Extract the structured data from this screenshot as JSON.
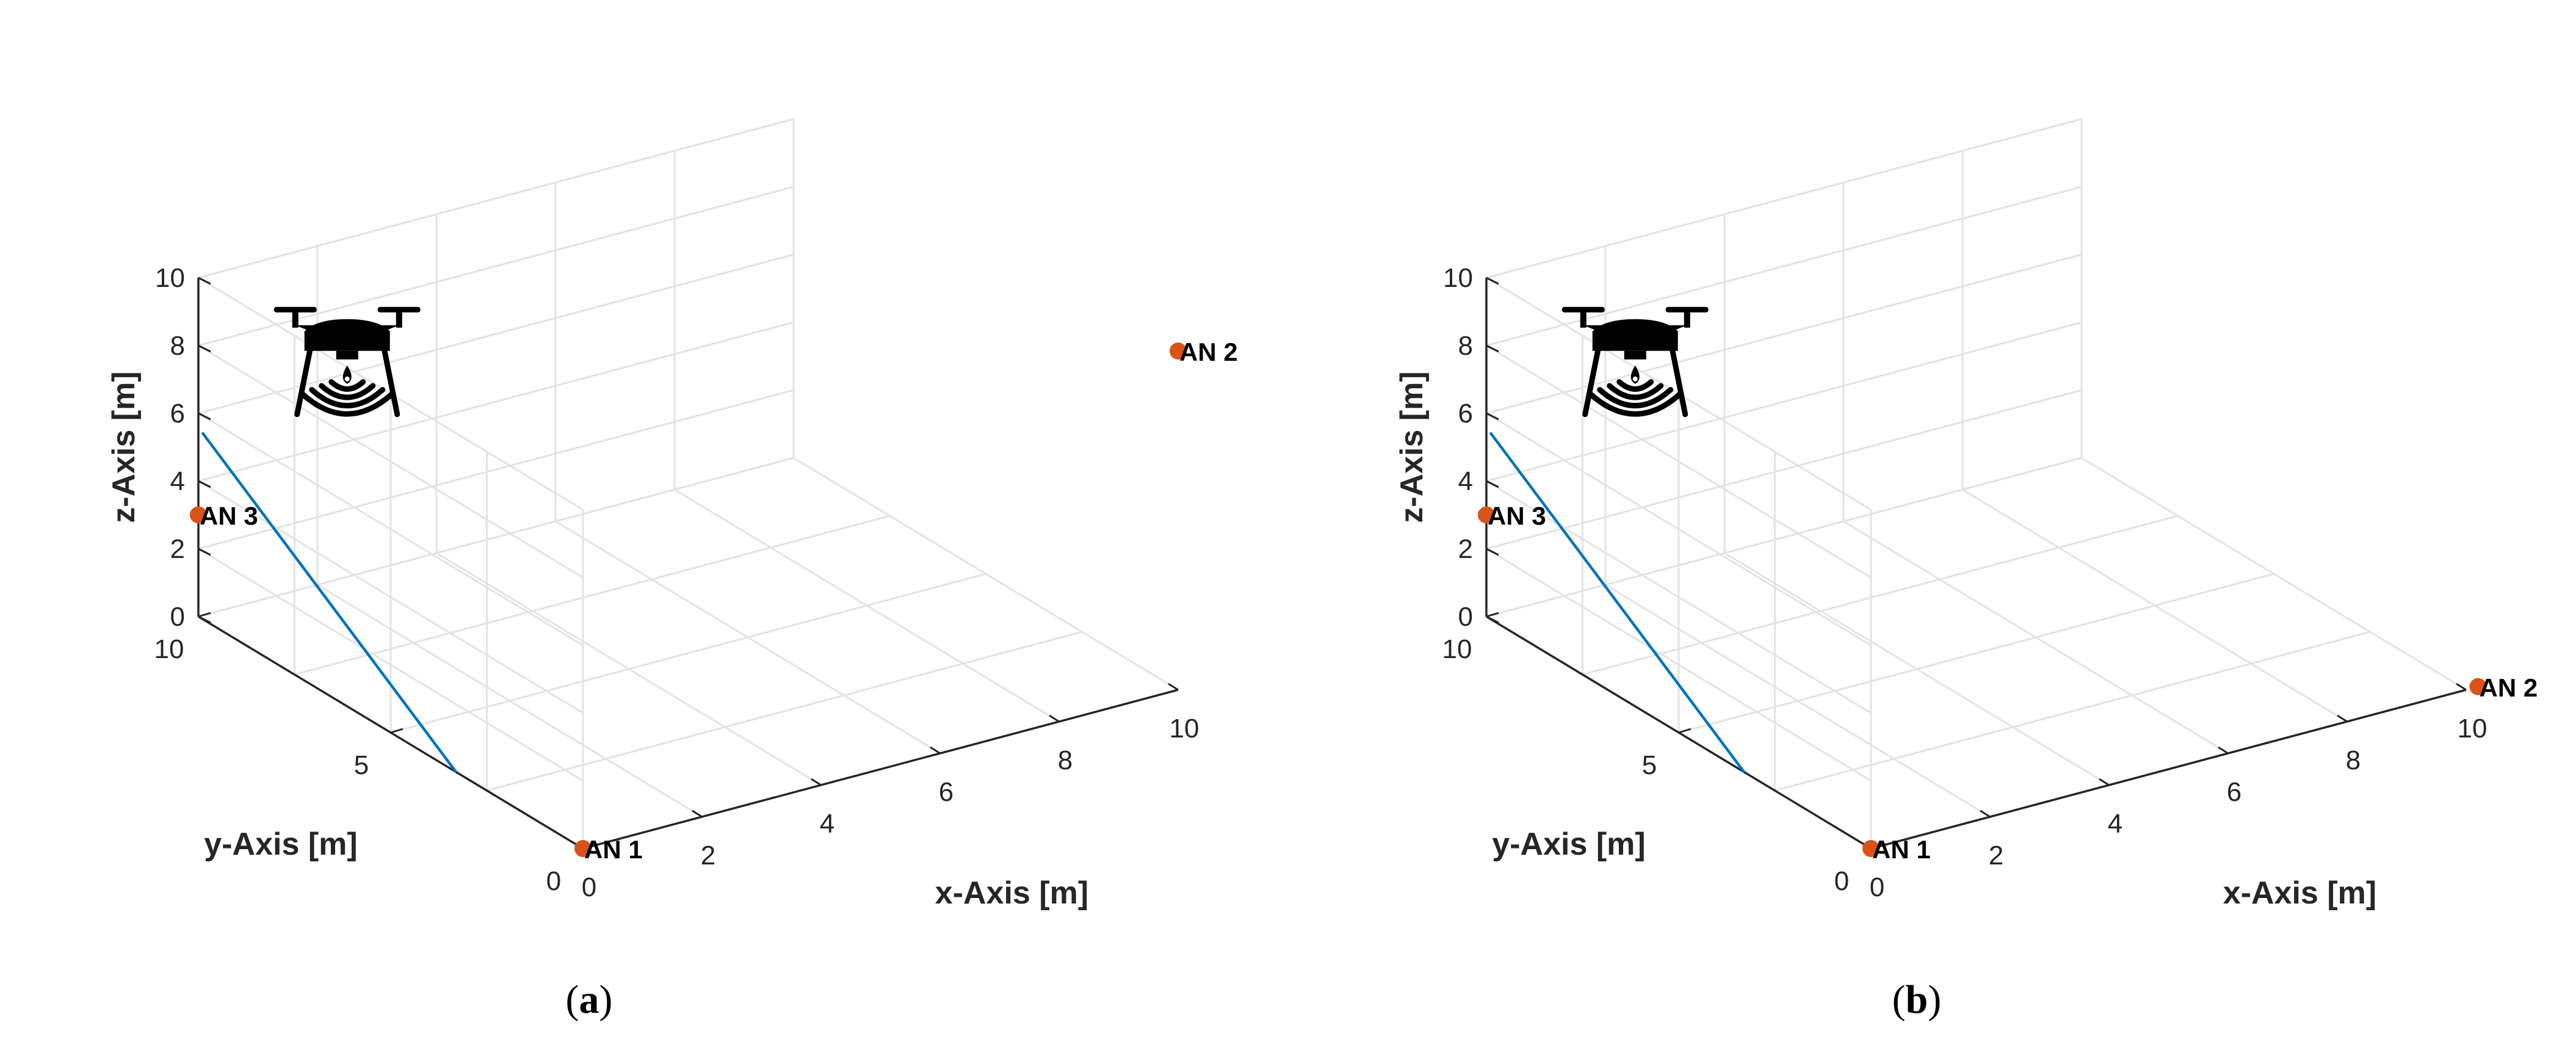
{
  "colors": {
    "grid": "#e3e3e3",
    "axis": "#262626",
    "trajectory": "#0072BD",
    "anchor": "#D95319",
    "drone": "#000000"
  },
  "icons": [
    "drone-icon",
    "wireless-signal-icon"
  ],
  "chart_data": [
    {
      "type": "scatter3d",
      "panel_label": "a",
      "xlabel": "x-Axis [m]",
      "ylabel": "y-Axis [m]",
      "zlabel": "z-Axis [m]",
      "xlim": [
        0,
        10
      ],
      "ylim": [
        0,
        10
      ],
      "zlim": [
        0,
        10
      ],
      "xticks": [
        "0",
        "2",
        "4",
        "6",
        "8",
        "10"
      ],
      "yticks": [
        "0",
        "5",
        "10"
      ],
      "zticks": [
        "0",
        "2",
        "4",
        "6",
        "8",
        "10"
      ],
      "grid": true,
      "anchors": [
        {
          "label": "AN 1",
          "x": 0,
          "y": 0,
          "z": 0
        },
        {
          "label": "AN 2",
          "x": 10,
          "y": 0,
          "z": 10
        },
        {
          "label": "AN 3",
          "x": 0,
          "y": 10,
          "z": 3
        }
      ],
      "trajectory": [
        {
          "x": 0,
          "y": 3.3,
          "z": 0
        },
        {
          "x": 0,
          "y": 9.9,
          "z": 5.5
        }
      ],
      "drone": {
        "x": 2.5,
        "y": 10,
        "z": 7.5
      }
    },
    {
      "type": "scatter3d",
      "panel_label": "b",
      "xlabel": "x-Axis [m]",
      "ylabel": "y-Axis [m]",
      "zlabel": "z-Axis [m]",
      "xlim": [
        0,
        10
      ],
      "ylim": [
        0,
        10
      ],
      "zlim": [
        0,
        10
      ],
      "xticks": [
        "0",
        "2",
        "4",
        "6",
        "8",
        "10"
      ],
      "yticks": [
        "0",
        "5",
        "10"
      ],
      "zticks": [
        "0",
        "2",
        "4",
        "6",
        "8",
        "10"
      ],
      "grid": true,
      "anchors": [
        {
          "label": "AN 1",
          "x": 0,
          "y": 0,
          "z": 0
        },
        {
          "label": "AN 2",
          "x": 10.2,
          "y": 0,
          "z": 0
        },
        {
          "label": "AN 3",
          "x": 0,
          "y": 10,
          "z": 3
        }
      ],
      "trajectory": [
        {
          "x": 0,
          "y": 3.3,
          "z": 0
        },
        {
          "x": 0,
          "y": 9.9,
          "z": 5.5
        }
      ],
      "drone": {
        "x": 2.5,
        "y": 10,
        "z": 7.5
      }
    }
  ]
}
